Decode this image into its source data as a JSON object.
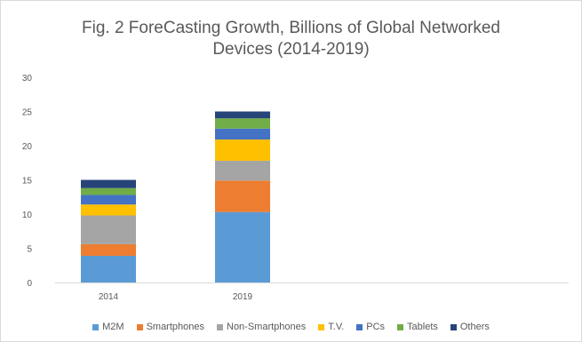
{
  "chart_data": {
    "type": "bar",
    "stacked": true,
    "title": "Fig. 2 ForeCasting Growth, Billions of Global Networked\nDevices (2014-2019)",
    "xlabel": "",
    "ylabel": "",
    "categories": [
      "2014",
      "2019"
    ],
    "ylim": [
      0,
      30
    ],
    "yticks": [
      0,
      5,
      10,
      15,
      20,
      25,
      30
    ],
    "grid": false,
    "legend_position": "bottom",
    "series": [
      {
        "name": "M2M",
        "color": "#5b9bd5",
        "values": [
          3.9,
          10.3
        ]
      },
      {
        "name": "Smartphones",
        "color": "#ed7d31",
        "values": [
          1.7,
          4.6
        ]
      },
      {
        "name": "Non-Smartphones",
        "color": "#a5a5a5",
        "values": [
          4.2,
          2.9
        ]
      },
      {
        "name": "T.V.",
        "color": "#ffc000",
        "values": [
          1.6,
          3.1
        ]
      },
      {
        "name": "PCs",
        "color": "#4472c4",
        "values": [
          1.4,
          1.6
        ]
      },
      {
        "name": "Tablets",
        "color": "#70ad47",
        "values": [
          1.0,
          1.5
        ]
      },
      {
        "name": "Others",
        "color": "#264478",
        "values": [
          1.2,
          1.0
        ]
      }
    ]
  }
}
